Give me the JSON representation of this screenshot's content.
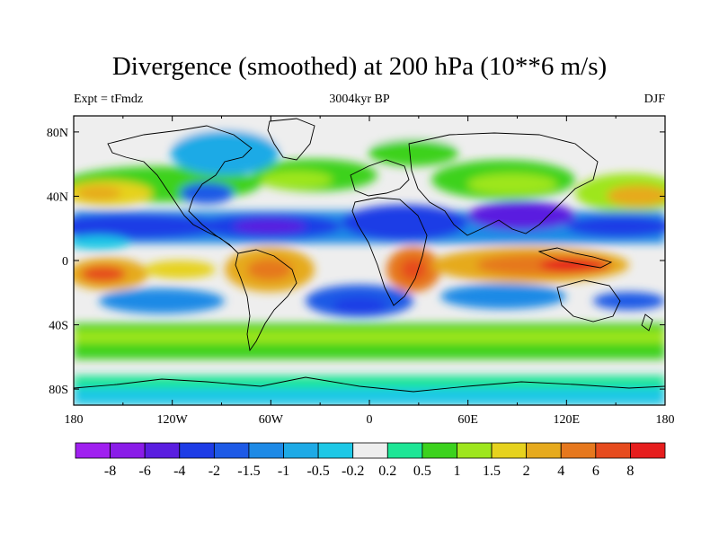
{
  "title": "Divergence (smoothed) at 200 hPa (10**6 m/s)",
  "subtitle_left": "Expt = tFmdz",
  "subtitle_center": "3004kyr BP",
  "subtitle_right": "DJF",
  "axes": {
    "lat_ticks": [
      "80N",
      "40N",
      "0",
      "40S",
      "80S"
    ],
    "lon_ticks": [
      "180",
      "120W",
      "60W",
      "0",
      "60E",
      "120E",
      "180"
    ]
  },
  "colorbar": {
    "labels": [
      "-8",
      "-6",
      "-4",
      "-2",
      "-1.5",
      "-1",
      "-0.5",
      "-0.2",
      "0.2",
      "0.5",
      "1",
      "1.5",
      "2",
      "4",
      "6",
      "8"
    ],
    "colors": [
      "#a020f0",
      "#8a1ce8",
      "#5a1ee0",
      "#1e3ce6",
      "#1e5ae6",
      "#1e8ae6",
      "#1eaae6",
      "#1ec8e6",
      "#eeeeee",
      "#1ee696",
      "#3cd21e",
      "#9ee61e",
      "#e6d21e",
      "#e6aa1e",
      "#e6781e",
      "#e64b1e",
      "#e61e1e"
    ]
  },
  "chart_data": {
    "type": "heatmap",
    "title": "Divergence (smoothed) at 200 hPa (10**6 m/s)",
    "experiment": "Expt = tFmdz",
    "period": "3004kyr BP",
    "season": "DJF",
    "lon_range": [
      -180,
      180
    ],
    "lat_range": [
      -90,
      90
    ],
    "units": "10**6 m/s",
    "contour_levels": [
      -8,
      -6,
      -4,
      -2,
      -1.5,
      -1,
      -0.5,
      -0.2,
      0.2,
      0.5,
      1,
      1.5,
      2,
      4,
      6,
      8
    ]
  }
}
